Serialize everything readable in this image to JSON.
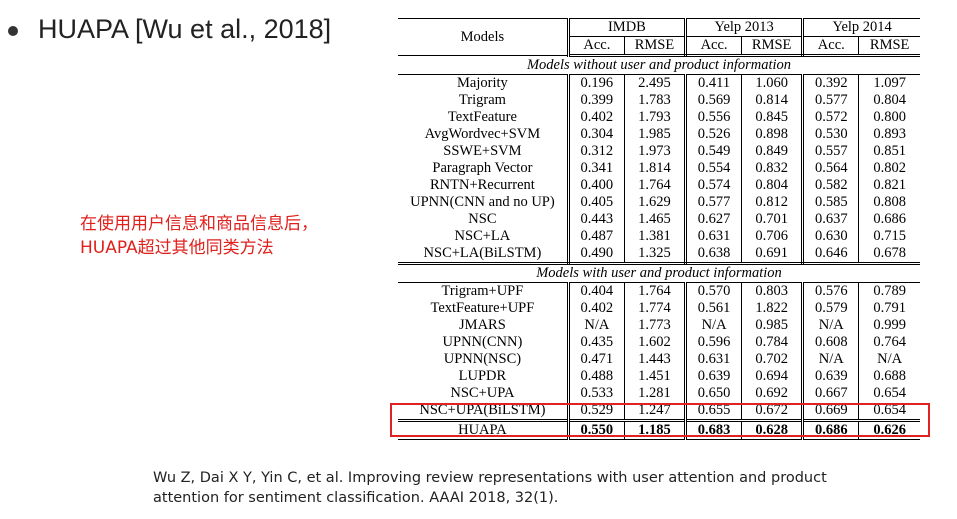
{
  "title": "HUAPA [Wu et al., 2018]",
  "note": {
    "line1": "在使用用户信息和商品信息后，",
    "line2": "HUAPA超过其他同类方法"
  },
  "table": {
    "models_header": "Models",
    "datasets": [
      "IMDB",
      "Yelp 2013",
      "Yelp 2014"
    ],
    "metrics": [
      "Acc.",
      "RMSE",
      "Acc.",
      "RMSE",
      "Acc.",
      "RMSE"
    ],
    "group1_label": "Models without user and product information",
    "group1_rows": [
      {
        "model": "Majority",
        "v": [
          "0.196",
          "2.495",
          "0.411",
          "1.060",
          "0.392",
          "1.097"
        ]
      },
      {
        "model": "Trigram",
        "v": [
          "0.399",
          "1.783",
          "0.569",
          "0.814",
          "0.577",
          "0.804"
        ]
      },
      {
        "model": "TextFeature",
        "v": [
          "0.402",
          "1.793",
          "0.556",
          "0.845",
          "0.572",
          "0.800"
        ]
      },
      {
        "model": "AvgWordvec+SVM",
        "v": [
          "0.304",
          "1.985",
          "0.526",
          "0.898",
          "0.530",
          "0.893"
        ]
      },
      {
        "model": "SSWE+SVM",
        "v": [
          "0.312",
          "1.973",
          "0.549",
          "0.849",
          "0.557",
          "0.851"
        ]
      },
      {
        "model": "Paragraph Vector",
        "v": [
          "0.341",
          "1.814",
          "0.554",
          "0.832",
          "0.564",
          "0.802"
        ]
      },
      {
        "model": "RNTN+Recurrent",
        "v": [
          "0.400",
          "1.764",
          "0.574",
          "0.804",
          "0.582",
          "0.821"
        ]
      },
      {
        "model": "UPNN(CNN and no UP)",
        "v": [
          "0.405",
          "1.629",
          "0.577",
          "0.812",
          "0.585",
          "0.808"
        ]
      },
      {
        "model": "NSC",
        "v": [
          "0.443",
          "1.465",
          "0.627",
          "0.701",
          "0.637",
          "0.686"
        ]
      },
      {
        "model": "NSC+LA",
        "v": [
          "0.487",
          "1.381",
          "0.631",
          "0.706",
          "0.630",
          "0.715"
        ]
      },
      {
        "model": "NSC+LA(BiLSTM)",
        "v": [
          "0.490",
          "1.325",
          "0.638",
          "0.691",
          "0.646",
          "0.678"
        ]
      }
    ],
    "group2_label": "Models with user and product information",
    "group2_rows": [
      {
        "model": "Trigram+UPF",
        "v": [
          "0.404",
          "1.764",
          "0.570",
          "0.803",
          "0.576",
          "0.789"
        ]
      },
      {
        "model": "TextFeature+UPF",
        "v": [
          "0.402",
          "1.774",
          "0.561",
          "1.822",
          "0.579",
          "0.791"
        ]
      },
      {
        "model": "JMARS",
        "v": [
          "N/A",
          "1.773",
          "N/A",
          "0.985",
          "N/A",
          "0.999"
        ]
      },
      {
        "model": "UPNN(CNN)",
        "v": [
          "0.435",
          "1.602",
          "0.596",
          "0.784",
          "0.608",
          "0.764"
        ]
      },
      {
        "model": "UPNN(NSC)",
        "v": [
          "0.471",
          "1.443",
          "0.631",
          "0.702",
          "N/A",
          "N/A"
        ]
      },
      {
        "model": "LUPDR",
        "v": [
          "0.488",
          "1.451",
          "0.639",
          "0.694",
          "0.639",
          "0.688"
        ]
      },
      {
        "model": "NSC+UPA",
        "v": [
          "0.533",
          "1.281",
          "0.650",
          "0.692",
          "0.667",
          "0.654"
        ]
      },
      {
        "model": "NSC+UPA(BiLSTM)",
        "v": [
          "0.529",
          "1.247",
          "0.655",
          "0.672",
          "0.669",
          "0.654"
        ]
      }
    ],
    "best_row": {
      "model": "HUAPA",
      "v": [
        "0.550",
        "1.185",
        "0.683",
        "0.628",
        "0.686",
        "0.626"
      ]
    }
  },
  "citation": {
    "line1": "Wu Z, Dai X Y, Yin C, et al. Improving review representations with user attention and product",
    "line2": "attention for sentiment classification. AAAI 2018, 32(1)."
  },
  "colors": {
    "highlight": "#e02222",
    "note_text": "#e0201c"
  }
}
